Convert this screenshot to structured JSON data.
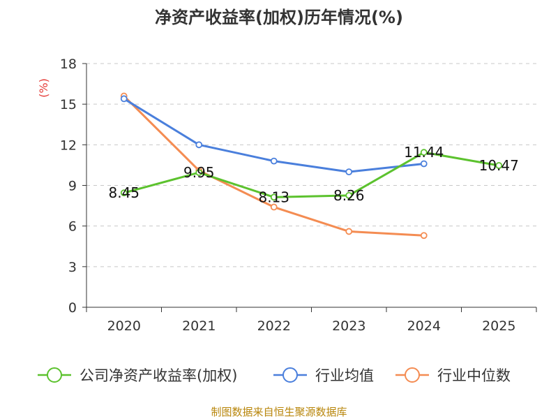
{
  "chart_data": {
    "type": "line",
    "title": "净资产收益率(加权)历年情况(%)",
    "ylabel": "(%)",
    "xlabel": "",
    "categories": [
      "2020",
      "2021",
      "2022",
      "2023",
      "2024",
      "2025"
    ],
    "y_ticks": [
      "0",
      "3",
      "6",
      "9",
      "12",
      "15",
      "18"
    ],
    "ylim": [
      0,
      18
    ],
    "grid": true,
    "legend_position": "bottom",
    "series": [
      {
        "name": "公司净资产收益率(加权)",
        "color": "#5cc22e",
        "values": [
          8.45,
          9.95,
          8.13,
          8.26,
          11.44,
          10.47
        ],
        "labels": [
          "8.45",
          "9.95",
          "8.13",
          "8.26",
          "11.44",
          "10.47"
        ],
        "show_labels": true
      },
      {
        "name": "行业均值",
        "color": "#4a7fdc",
        "values": [
          15.4,
          12.0,
          10.8,
          10.0,
          10.6,
          null
        ],
        "show_labels": false
      },
      {
        "name": "行业中位数",
        "color": "#f48c52",
        "values": [
          15.6,
          10.1,
          7.4,
          5.6,
          5.3,
          null
        ],
        "show_labels": false
      }
    ]
  },
  "footer": "制图数据来自恒生聚源数据库"
}
